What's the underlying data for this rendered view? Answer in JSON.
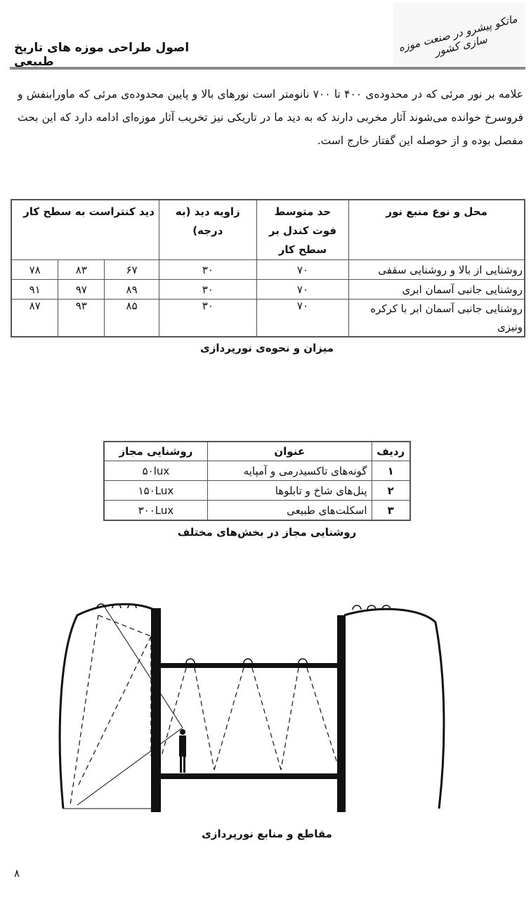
{
  "header": {
    "title": "اصول طراحی موزه های تاریخ طبیعی",
    "logo_text": "ماتکو پیشرو در صنعت موزه سازی کشور"
  },
  "paragraph": "علامه بر نور مرئی که در محدوده‌ی ۴۰۰ تا ۷۰۰ نانومتر است نورهای بالا و پایین محدوده‌ی مرئی که ماورابنفش و فروسرخ خوانده می‌شوند آثار مخربی دارند که به دید ما در تاریکی نیز تخریب آثار موزه‌ای ادامه دارد که این بحث مفصل بوده و از حوصله این گفتار خارج است.",
  "table1": {
    "headers": [
      "محل و نوع  منبع نور",
      "حد متوسط فوت کندل بر سطح کار",
      "زاویه دید (به درجه)",
      "دید کنتراست به سطح کار"
    ],
    "rows": [
      {
        "source": "روشنایی از بالا و روشنایی سقفی",
        "footcandle": "۷۰",
        "angle": "۳۰",
        "contrast": [
          "۶۷",
          "۸۳",
          "۷۸"
        ]
      },
      {
        "source": "روشنایی جانبی آسمان ابری",
        "footcandle": "۷۰",
        "angle": "۳۰",
        "contrast": [
          "۸۹",
          "۹۷",
          "۹۱"
        ]
      },
      {
        "source": "روشنایی جانبی آسمان ابر با کرکره ونیزی",
        "footcandle": "۷۰",
        "angle": "۳۰",
        "contrast": [
          "۸۵",
          "۹۳",
          "۸۷"
        ]
      }
    ],
    "caption": "میزان و نحوه‌ی نورپردازی"
  },
  "table2": {
    "headers": [
      "ردیف",
      "عنوان",
      "روشنایی مجاز"
    ],
    "rows": [
      {
        "num": "۱",
        "title": "گونه‌های تاکسیدرمی و آمپایه",
        "lux": "۵۰lux"
      },
      {
        "num": "۲",
        "title": "پنل‌های شاخ و تابلوها",
        "lux": "۱۵۰Lux"
      },
      {
        "num": "۳",
        "title": "اسکلت‌های طبیعی",
        "lux": "۳۰۰Lux"
      }
    ],
    "caption": "روشنایی مجاز در بخش‌های مختلف"
  },
  "figure": {
    "caption": "مقاطع و منابع نورپردازی"
  },
  "page_number": "۸"
}
